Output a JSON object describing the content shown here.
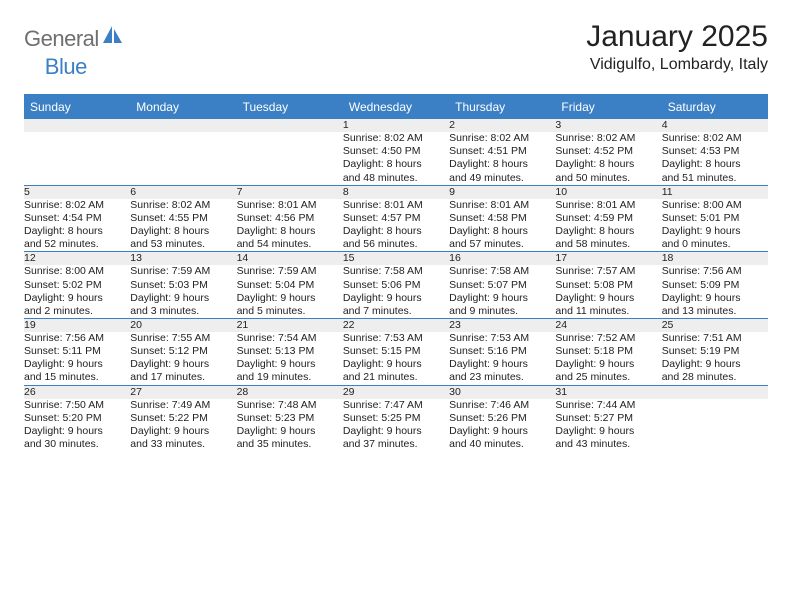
{
  "logo": {
    "text1": "General",
    "text2": "Blue"
  },
  "title": "January 2025",
  "subtitle": "Vidigulfo, Lombardy, Italy",
  "colors": {
    "header_bg": "#3b7fc4",
    "header_text": "#ffffff",
    "daynum_bg": "#eeeeee",
    "border": "#3b7fc4",
    "body_text": "#222222",
    "logo_gray": "#6f6f6f",
    "logo_blue": "#3b7fc4"
  },
  "weekdays": [
    "Sunday",
    "Monday",
    "Tuesday",
    "Wednesday",
    "Thursday",
    "Friday",
    "Saturday"
  ],
  "weeks": [
    {
      "nums": [
        "",
        "",
        "",
        "1",
        "2",
        "3",
        "4"
      ],
      "details": [
        "",
        "",
        "",
        "Sunrise: 8:02 AM\nSunset: 4:50 PM\nDaylight: 8 hours\nand 48 minutes.",
        "Sunrise: 8:02 AM\nSunset: 4:51 PM\nDaylight: 8 hours\nand 49 minutes.",
        "Sunrise: 8:02 AM\nSunset: 4:52 PM\nDaylight: 8 hours\nand 50 minutes.",
        "Sunrise: 8:02 AM\nSunset: 4:53 PM\nDaylight: 8 hours\nand 51 minutes."
      ]
    },
    {
      "nums": [
        "5",
        "6",
        "7",
        "8",
        "9",
        "10",
        "11"
      ],
      "details": [
        "Sunrise: 8:02 AM\nSunset: 4:54 PM\nDaylight: 8 hours\nand 52 minutes.",
        "Sunrise: 8:02 AM\nSunset: 4:55 PM\nDaylight: 8 hours\nand 53 minutes.",
        "Sunrise: 8:01 AM\nSunset: 4:56 PM\nDaylight: 8 hours\nand 54 minutes.",
        "Sunrise: 8:01 AM\nSunset: 4:57 PM\nDaylight: 8 hours\nand 56 minutes.",
        "Sunrise: 8:01 AM\nSunset: 4:58 PM\nDaylight: 8 hours\nand 57 minutes.",
        "Sunrise: 8:01 AM\nSunset: 4:59 PM\nDaylight: 8 hours\nand 58 minutes.",
        "Sunrise: 8:00 AM\nSunset: 5:01 PM\nDaylight: 9 hours\nand 0 minutes."
      ]
    },
    {
      "nums": [
        "12",
        "13",
        "14",
        "15",
        "16",
        "17",
        "18"
      ],
      "details": [
        "Sunrise: 8:00 AM\nSunset: 5:02 PM\nDaylight: 9 hours\nand 2 minutes.",
        "Sunrise: 7:59 AM\nSunset: 5:03 PM\nDaylight: 9 hours\nand 3 minutes.",
        "Sunrise: 7:59 AM\nSunset: 5:04 PM\nDaylight: 9 hours\nand 5 minutes.",
        "Sunrise: 7:58 AM\nSunset: 5:06 PM\nDaylight: 9 hours\nand 7 minutes.",
        "Sunrise: 7:58 AM\nSunset: 5:07 PM\nDaylight: 9 hours\nand 9 minutes.",
        "Sunrise: 7:57 AM\nSunset: 5:08 PM\nDaylight: 9 hours\nand 11 minutes.",
        "Sunrise: 7:56 AM\nSunset: 5:09 PM\nDaylight: 9 hours\nand 13 minutes."
      ]
    },
    {
      "nums": [
        "19",
        "20",
        "21",
        "22",
        "23",
        "24",
        "25"
      ],
      "details": [
        "Sunrise: 7:56 AM\nSunset: 5:11 PM\nDaylight: 9 hours\nand 15 minutes.",
        "Sunrise: 7:55 AM\nSunset: 5:12 PM\nDaylight: 9 hours\nand 17 minutes.",
        "Sunrise: 7:54 AM\nSunset: 5:13 PM\nDaylight: 9 hours\nand 19 minutes.",
        "Sunrise: 7:53 AM\nSunset: 5:15 PM\nDaylight: 9 hours\nand 21 minutes.",
        "Sunrise: 7:53 AM\nSunset: 5:16 PM\nDaylight: 9 hours\nand 23 minutes.",
        "Sunrise: 7:52 AM\nSunset: 5:18 PM\nDaylight: 9 hours\nand 25 minutes.",
        "Sunrise: 7:51 AM\nSunset: 5:19 PM\nDaylight: 9 hours\nand 28 minutes."
      ]
    },
    {
      "nums": [
        "26",
        "27",
        "28",
        "29",
        "30",
        "31",
        ""
      ],
      "details": [
        "Sunrise: 7:50 AM\nSunset: 5:20 PM\nDaylight: 9 hours\nand 30 minutes.",
        "Sunrise: 7:49 AM\nSunset: 5:22 PM\nDaylight: 9 hours\nand 33 minutes.",
        "Sunrise: 7:48 AM\nSunset: 5:23 PM\nDaylight: 9 hours\nand 35 minutes.",
        "Sunrise: 7:47 AM\nSunset: 5:25 PM\nDaylight: 9 hours\nand 37 minutes.",
        "Sunrise: 7:46 AM\nSunset: 5:26 PM\nDaylight: 9 hours\nand 40 minutes.",
        "Sunrise: 7:44 AM\nSunset: 5:27 PM\nDaylight: 9 hours\nand 43 minutes.",
        ""
      ]
    }
  ]
}
